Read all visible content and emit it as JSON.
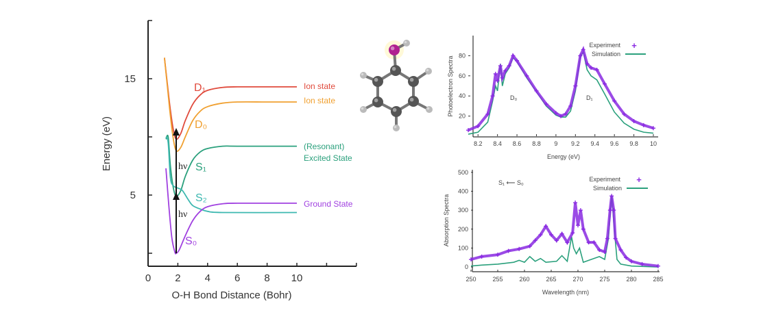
{
  "chart_data": [
    {
      "type": "line",
      "xlabel": "O-H Bond Distance (Bohr)",
      "ylabel": "Energy (eV)",
      "xlim": [
        0,
        14
      ],
      "ylim": [
        -1,
        20
      ],
      "xticks": [
        "0",
        "2",
        "4",
        "6",
        "8",
        "10"
      ],
      "yticks": [
        "5",
        "15"
      ],
      "grid": false,
      "series": [
        {
          "name": "D₁",
          "label": "Ion state",
          "color": "#e04a3c",
          "points": [
            [
              1.1,
              16.8
            ],
            [
              1.3,
              14.5
            ],
            [
              1.5,
              12.3
            ],
            [
              1.7,
              10.6
            ],
            [
              1.9,
              9.8
            ],
            [
              2.2,
              10.3
            ],
            [
              2.5,
              11.4
            ],
            [
              3,
              12.8
            ],
            [
              3.5,
              13.6
            ],
            [
              4,
              14.0
            ],
            [
              5,
              14.25
            ],
            [
              6,
              14.3
            ],
            [
              8,
              14.3
            ],
            [
              10,
              14.3
            ]
          ]
        },
        {
          "name": "D₀",
          "label": "Ion state",
          "color": "#f0a030",
          "points": [
            [
              1.1,
              16.8
            ],
            [
              1.3,
              14.3
            ],
            [
              1.5,
              11.8
            ],
            [
              1.7,
              9.8
            ],
            [
              1.9,
              8.8
            ],
            [
              2.2,
              9.1
            ],
            [
              2.5,
              10.0
            ],
            [
              3,
              11.4
            ],
            [
              3.5,
              12.2
            ],
            [
              4,
              12.6
            ],
            [
              5,
              12.9
            ],
            [
              6,
              13.0
            ],
            [
              8,
              13.0
            ],
            [
              10,
              13.0
            ]
          ]
        },
        {
          "name": "S₁",
          "label": "(Resonant)",
          "label2": "Excited State",
          "color": "#2aa07c",
          "points": [
            [
              1.2,
              9.8
            ],
            [
              1.35,
              10.0
            ],
            [
              1.5,
              7.5
            ],
            [
              1.7,
              5.6
            ],
            [
              1.9,
              4.9
            ],
            [
              2.2,
              5.4
            ],
            [
              2.5,
              6.6
            ],
            [
              3,
              8.0
            ],
            [
              3.5,
              8.7
            ],
            [
              4,
              9.0
            ],
            [
              5,
              9.2
            ],
            [
              6,
              9.2
            ],
            [
              10,
              9.2
            ]
          ]
        },
        {
          "name": "S₂",
          "label": "",
          "color": "#3cb8b0",
          "points": [
            [
              1.2,
              10.0
            ],
            [
              1.35,
              9.5
            ],
            [
              1.5,
              6.5
            ],
            [
              1.7,
              5.8
            ],
            [
              2,
              5.6
            ],
            [
              2.3,
              5.4
            ],
            [
              2.7,
              4.6
            ],
            [
              3,
              4.1
            ],
            [
              3.5,
              3.8
            ],
            [
              4,
              3.6
            ],
            [
              5,
              3.5
            ],
            [
              10,
              3.5
            ]
          ]
        },
        {
          "name": "S₀",
          "label": "Ground State",
          "color": "#a040e0",
          "points": [
            [
              1.2,
              7.3
            ],
            [
              1.4,
              4.0
            ],
            [
              1.6,
              1.3
            ],
            [
              1.8,
              0.1
            ],
            [
              1.9,
              0.0
            ],
            [
              2.1,
              0.3
            ],
            [
              2.5,
              1.5
            ],
            [
              3,
              2.8
            ],
            [
              3.5,
              3.6
            ],
            [
              4,
              4.0
            ],
            [
              5,
              4.25
            ],
            [
              6,
              4.3
            ],
            [
              10,
              4.3
            ]
          ]
        }
      ],
      "annotations": {
        "photon_1": "hν",
        "photon_2": "hν"
      }
    },
    {
      "type": "line",
      "xlabel": "Energy (eV)",
      "ylabel": "Photoelectron Spectra",
      "xlim": [
        8.1,
        10
      ],
      "ylim": [
        0,
        100
      ],
      "xticks": [
        "8.2",
        "8.4",
        "8.6",
        "8.8",
        "9",
        "9.2",
        "9.4",
        "9.6",
        "9.8",
        "10"
      ],
      "yticks": [
        "20",
        "40",
        "60",
        "80"
      ],
      "legend": "top-right",
      "annotations": {
        "band_1": "D₀",
        "band_2": "D₁"
      },
      "series": [
        {
          "name": "Experiment",
          "color": "#8a2be2",
          "marker": "+",
          "x": [
            8.1,
            8.2,
            8.3,
            8.35,
            8.38,
            8.4,
            8.43,
            8.45,
            8.48,
            8.52,
            8.56,
            8.6,
            8.7,
            8.8,
            8.9,
            9.0,
            9.05,
            9.1,
            9.15,
            9.2,
            9.25,
            9.28,
            9.32,
            9.36,
            9.42,
            9.5,
            9.6,
            9.7,
            9.8,
            9.9,
            10
          ],
          "y": [
            6,
            10,
            22,
            40,
            62,
            55,
            70,
            58,
            65,
            70,
            80,
            75,
            60,
            45,
            32,
            23,
            20,
            22,
            30,
            50,
            80,
            86,
            72,
            68,
            66,
            52,
            35,
            22,
            15,
            11,
            8
          ]
        },
        {
          "name": "Simulation",
          "color": "#2aa07c",
          "x": [
            8.1,
            8.2,
            8.3,
            8.35,
            8.38,
            8.4,
            8.43,
            8.45,
            8.48,
            8.52,
            8.56,
            8.6,
            8.7,
            8.8,
            8.9,
            9.0,
            9.05,
            9.1,
            9.15,
            9.2,
            9.25,
            9.28,
            9.32,
            9.36,
            9.42,
            9.5,
            9.6,
            9.7,
            9.8,
            9.9,
            10
          ],
          "y": [
            2,
            4,
            14,
            35,
            50,
            45,
            72,
            50,
            62,
            68,
            78,
            74,
            58,
            44,
            30,
            21,
            19,
            19,
            25,
            45,
            78,
            84,
            66,
            60,
            56,
            42,
            24,
            13,
            7,
            4,
            3
          ]
        }
      ]
    },
    {
      "type": "line",
      "xlabel": "Wavelength (nm)",
      "ylabel": "Absorption Spectra",
      "xlim": [
        250,
        285
      ],
      "ylim": [
        -25,
        510
      ],
      "xticks": [
        "250",
        "255",
        "260",
        "265",
        "270",
        "275",
        "280",
        "285"
      ],
      "yticks": [
        "0",
        "100",
        "200",
        "300",
        "400",
        "500"
      ],
      "legend": "top-right",
      "annotations": {
        "transition": "S₁ ⟵ S₀"
      },
      "series": [
        {
          "name": "Experiment",
          "color": "#8a2be2",
          "marker": "+",
          "x": [
            250,
            252,
            255,
            257,
            259,
            261,
            262,
            263,
            264,
            265,
            266,
            267,
            268,
            269,
            269.5,
            270,
            270.5,
            271,
            272,
            273,
            274,
            275,
            275.5,
            276,
            276.3,
            276.7,
            277,
            278,
            279,
            280,
            282,
            285
          ],
          "y": [
            40,
            55,
            65,
            85,
            95,
            110,
            140,
            170,
            215,
            170,
            140,
            175,
            130,
            180,
            340,
            220,
            300,
            200,
            130,
            130,
            90,
            80,
            150,
            300,
            375,
            300,
            150,
            90,
            50,
            30,
            15,
            5
          ]
        },
        {
          "name": "Simulation",
          "color": "#2aa07c",
          "x": [
            250,
            252,
            255,
            258,
            259,
            260,
            261,
            262,
            263,
            264,
            266,
            267,
            268,
            268.8,
            269.2,
            269.7,
            270.3,
            271,
            272,
            273,
            274,
            275,
            275.7,
            276.3,
            276.8,
            277.3,
            278,
            280,
            285
          ],
          "y": [
            5,
            10,
            15,
            25,
            35,
            25,
            55,
            30,
            45,
            25,
            30,
            60,
            30,
            160,
            100,
            70,
            100,
            25,
            35,
            45,
            55,
            40,
            150,
            380,
            200,
            40,
            15,
            5,
            0
          ]
        }
      ]
    }
  ],
  "molecule": {
    "name": "phenol",
    "colors": {
      "carbon": "#555555",
      "hydrogen": "#bbbbbb",
      "oxygen": "#b02090"
    }
  }
}
